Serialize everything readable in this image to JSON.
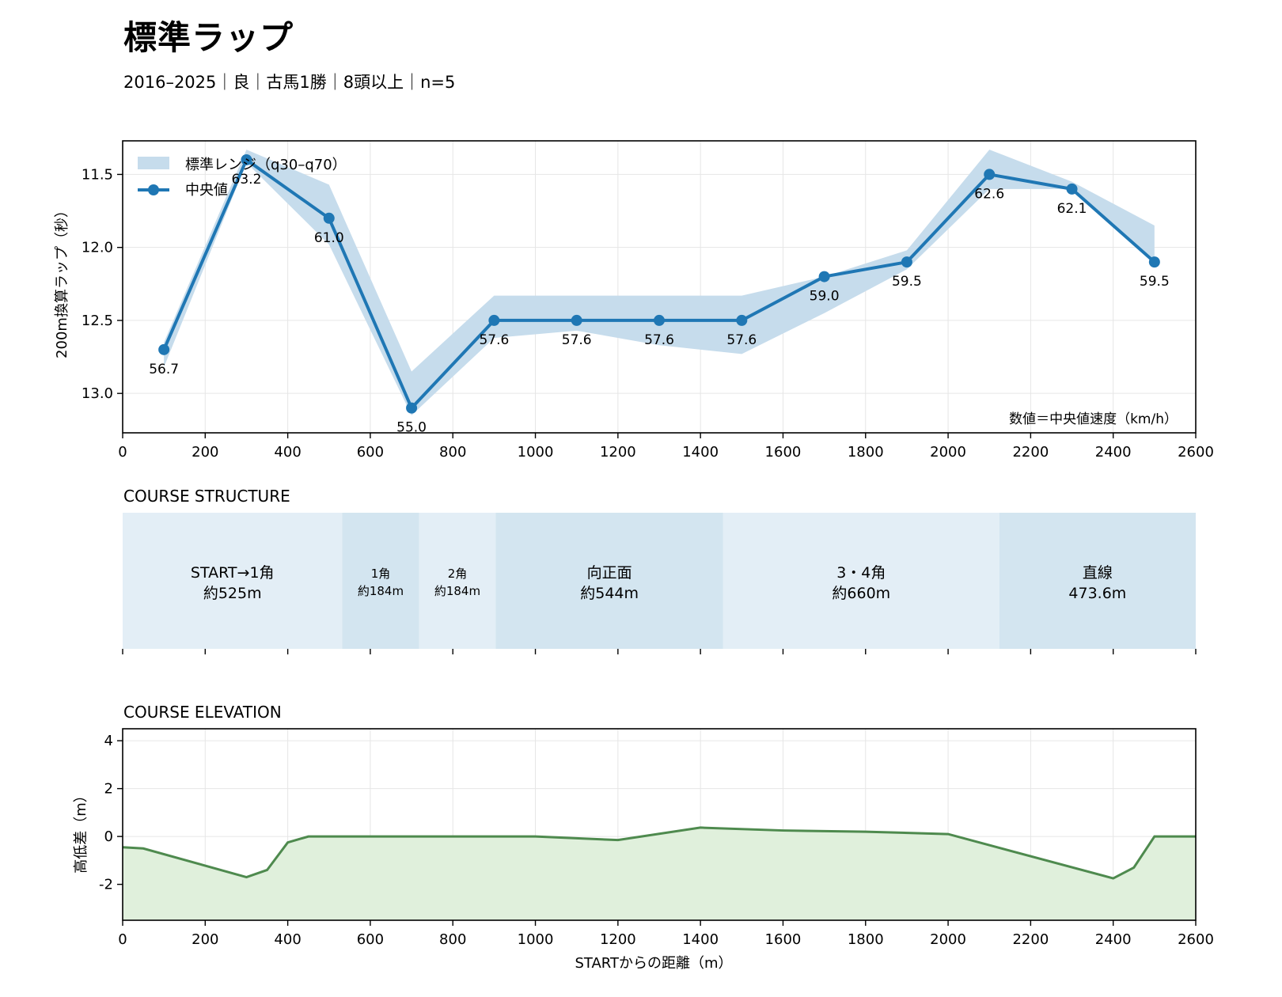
{
  "header": {
    "title": "標準ラップ",
    "subtitle": "2016–2025｜良｜古馬1勝｜8頭以上｜n=5"
  },
  "colors": {
    "line": "#1f77b4",
    "band": "#c6dcec",
    "segment_light": "#e3eef6",
    "segment_dark": "#d3e5f0",
    "elevation_line": "#4e8a4e",
    "elevation_fill": "#e0f0dc"
  },
  "chart_data": [
    {
      "type": "line",
      "ylabel": "200m換算ラップ（秒）",
      "xlim": [
        0,
        2600
      ],
      "ylim": [
        13.27,
        11.27
      ],
      "y_inverted": true,
      "xticks": [
        0,
        200,
        400,
        600,
        800,
        1000,
        1200,
        1400,
        1600,
        1800,
        2000,
        2200,
        2400,
        2600
      ],
      "yticks": [
        11.5,
        12.0,
        12.5,
        13.0
      ],
      "ytick_labels": [
        "11.5",
        "12.0",
        "12.5",
        "13.0"
      ],
      "grid": true,
      "legend_position": "top-left",
      "annotation": "数値＝中央値速度（km/h）",
      "x": [
        100,
        300,
        500,
        700,
        900,
        1100,
        1300,
        1500,
        1700,
        1900,
        2100,
        2300,
        2500
      ],
      "series": [
        {
          "name": "中央値",
          "values": [
            12.7,
            11.4,
            11.8,
            13.1,
            12.5,
            12.5,
            12.5,
            12.5,
            12.2,
            12.1,
            11.5,
            11.6,
            12.1
          ],
          "labels": [
            "56.7",
            "63.2",
            "61.0",
            "55.0",
            "57.6",
            "57.6",
            "57.6",
            "57.6",
            "59.0",
            "59.5",
            "62.6",
            "62.1",
            "59.5"
          ]
        },
        {
          "name": "標準レンジ（q30–q70）",
          "lower": [
            12.65,
            11.33,
            11.57,
            12.85,
            12.33,
            12.33,
            12.33,
            12.33,
            12.2,
            12.02,
            11.33,
            11.55,
            11.85
          ],
          "upper": [
            12.82,
            11.42,
            11.98,
            13.15,
            12.62,
            12.57,
            12.67,
            12.73,
            12.45,
            12.15,
            11.6,
            11.6,
            12.1
          ]
        }
      ]
    },
    {
      "type": "bar",
      "title": "COURSE STRUCTURE",
      "xlim": [
        0,
        2600
      ],
      "segments": [
        {
          "name": "START→1角",
          "length": "約525m",
          "start": 0,
          "end": 532,
          "tone": "light"
        },
        {
          "name": "1角",
          "length": "約184m",
          "start": 532,
          "end": 718,
          "tone": "dark"
        },
        {
          "name": "2角",
          "length": "約184m",
          "start": 718,
          "end": 904,
          "tone": "light"
        },
        {
          "name": "向正面",
          "length": "約544m",
          "start": 904,
          "end": 1455,
          "tone": "dark"
        },
        {
          "name": "3・4角",
          "length": "約660m",
          "start": 1455,
          "end": 2124,
          "tone": "light"
        },
        {
          "name": "直線",
          "length": "473.6m",
          "start": 2124,
          "end": 2600,
          "tone": "dark"
        }
      ]
    },
    {
      "type": "area",
      "title": "COURSE ELEVATION",
      "xlabel": "STARTからの距離（m）",
      "ylabel": "高低差（m）",
      "xlim": [
        0,
        2600
      ],
      "ylim": [
        -3.5,
        4.5
      ],
      "xticks": [
        0,
        200,
        400,
        600,
        800,
        1000,
        1200,
        1400,
        1600,
        1800,
        2000,
        2200,
        2400,
        2600
      ],
      "yticks": [
        4,
        2,
        0,
        -2
      ],
      "ytick_labels": [
        "4",
        "2",
        "0",
        "-2"
      ],
      "grid": true,
      "x": [
        0,
        50,
        300,
        350,
        400,
        450,
        1000,
        1200,
        1400,
        1600,
        1800,
        2000,
        2400,
        2450,
        2500,
        2600
      ],
      "values": [
        -0.45,
        -0.5,
        -1.7,
        -1.4,
        -0.25,
        0,
        0,
        -0.15,
        0.37,
        0.25,
        0.2,
        0.1,
        -1.75,
        -1.3,
        0,
        0
      ]
    }
  ]
}
